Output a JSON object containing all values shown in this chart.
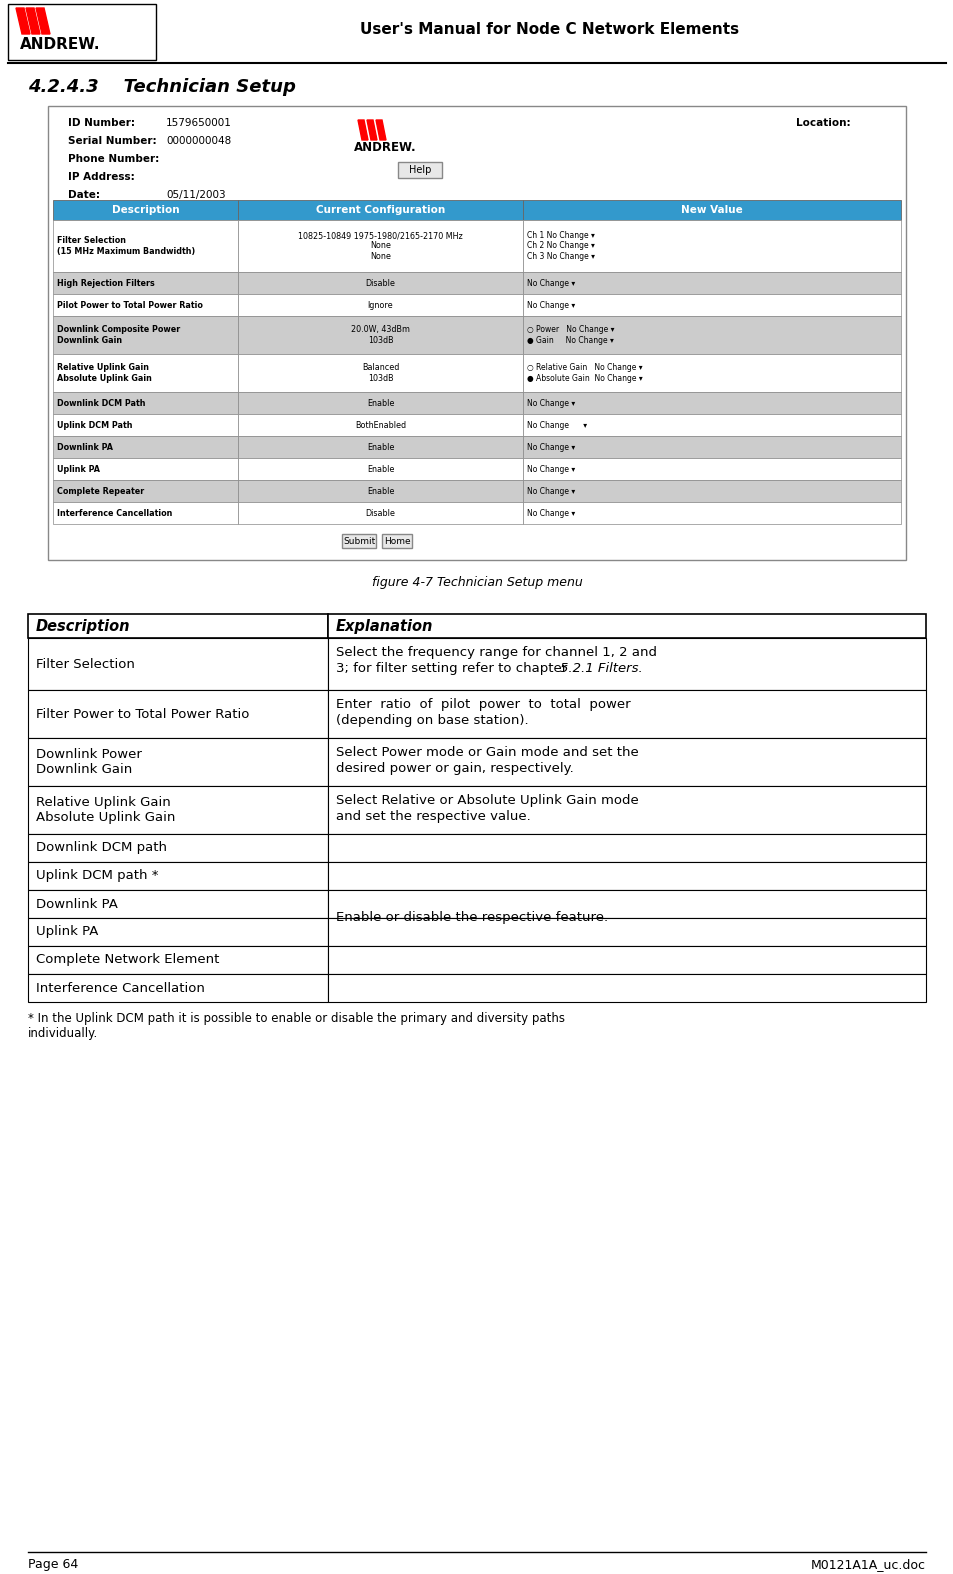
{
  "header_title": "User's Manual for Node C Network Elements",
  "section_title": "4.2.4.3    Technician Setup",
  "figure_caption": "figure 4-7 Technician Setup menu",
  "footer_left": "Page 64",
  "footer_right": "M0121A1A_uc.doc",
  "ui_fields": [
    [
      "ID Number:",
      "1579650001"
    ],
    [
      "Serial Number:",
      "0000000048"
    ],
    [
      "Phone Number:",
      ""
    ],
    [
      "IP Address:",
      ""
    ],
    [
      "Date:",
      "05/11/2003"
    ]
  ],
  "location_label": "Location:",
  "header_bg": "#3399CC",
  "header_fg": "#FFFFFF",
  "ui_table_rows": [
    {
      "desc": "Filter Selection\n(15 MHz Maximum Bandwidth)",
      "config": "10825-10849 1975-1980/2165-2170 MHz\nNone\nNone",
      "newval": "Ch 1 No Change ▾\nCh 2 No Change ▾\nCh 3 No Change ▾",
      "bg": "#FFFFFF",
      "rh": 52
    },
    {
      "desc": "High Rejection Filters",
      "config": "Disable",
      "newval": "No Change ▾",
      "bg": "#CCCCCC",
      "rh": 22
    },
    {
      "desc": "Pilot Power to Total Power Ratio",
      "config": "Ignore",
      "newval": "No Change ▾",
      "bg": "#FFFFFF",
      "rh": 22
    },
    {
      "desc": "Downlink Composite Power\nDownlink Gain",
      "config": "20.0W, 43dBm\n103dB",
      "newval": "○ Power   No Change ▾\n● Gain     No Change ▾",
      "bg": "#CCCCCC",
      "rh": 38
    },
    {
      "desc": "Relative Uplink Gain\nAbsolute Uplink Gain",
      "config": "Balanced\n103dB",
      "newval": "○ Relative Gain   No Change ▾\n● Absolute Gain  No Change ▾",
      "bg": "#FFFFFF",
      "rh": 38
    },
    {
      "desc": "Downlink DCM Path",
      "config": "Enable",
      "newval": "No Change ▾",
      "bg": "#CCCCCC",
      "rh": 22
    },
    {
      "desc": "Uplink DCM Path",
      "config": "BothEnabled",
      "newval": "No Change      ▾",
      "bg": "#FFFFFF",
      "rh": 22
    },
    {
      "desc": "Downlink PA",
      "config": "Enable",
      "newval": "No Change ▾",
      "bg": "#CCCCCC",
      "rh": 22
    },
    {
      "desc": "Uplink PA",
      "config": "Enable",
      "newval": "No Change ▾",
      "bg": "#FFFFFF",
      "rh": 22
    },
    {
      "desc": "Complete Repeater",
      "config": "Enable",
      "newval": "No Change ▾",
      "bg": "#CCCCCC",
      "rh": 22
    },
    {
      "desc": "Interference Cancellation",
      "config": "Disable",
      "newval": "No Change ▾",
      "bg": "#FFFFFF",
      "rh": 22
    }
  ],
  "expl_rows": [
    {
      "desc": "Filter Selection",
      "rh": 52
    },
    {
      "desc": "Filter Power to Total Power Ratio",
      "rh": 48
    },
    {
      "desc": "Downlink Power\nDownlink Gain",
      "rh": 48
    },
    {
      "desc": "Relative Uplink Gain\nAbsolute Uplink Gain",
      "rh": 48
    },
    {
      "desc": "Downlink DCM path",
      "rh": 28
    },
    {
      "desc": "Uplink DCM path *",
      "rh": 28
    },
    {
      "desc": "Downlink PA",
      "rh": 28
    },
    {
      "desc": "Uplink PA",
      "rh": 28
    },
    {
      "desc": "Complete Network Element",
      "rh": 28
    },
    {
      "desc": "Interference Cancellation",
      "rh": 28
    }
  ],
  "expl_texts": [
    "Select the frequency range for channel 1, 2 and\n3; for filter setting refer to chapter 5.2.1 Filters.",
    "Enter  ratio  of  pilot  power  to  total  power\n(depending on base station).",
    "Select Power mode or Gain mode and set the\ndesired power or gain, respectively.",
    "Select Relative or Absolute Uplink Gain mode\nand set the respective value.",
    "Enable or disable the respective feature."
  ],
  "footnote": "* In the Uplink DCM path it is possible to enable or disable the primary and diversity paths\nindividually."
}
